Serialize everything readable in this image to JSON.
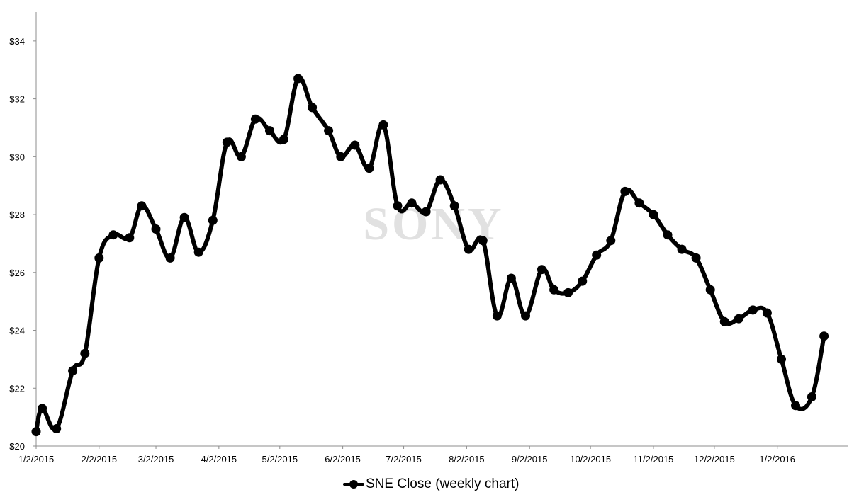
{
  "chart_data": {
    "type": "line",
    "title": "",
    "xlabel": "",
    "ylabel": "",
    "watermark": "SONY",
    "legend": {
      "position": "bottom",
      "entries": [
        "SNE Close (weekly chart)"
      ]
    },
    "grid": false,
    "ylim": [
      20,
      35
    ],
    "y_ticks": [
      {
        "value": 20,
        "label": "$20"
      },
      {
        "value": 22,
        "label": "$22"
      },
      {
        "value": 24,
        "label": "$24"
      },
      {
        "value": 26,
        "label": "$26"
      },
      {
        "value": 28,
        "label": "$28"
      },
      {
        "value": 30,
        "label": "$30"
      },
      {
        "value": 32,
        "label": "$32"
      },
      {
        "value": 34,
        "label": "$34"
      }
    ],
    "x_ticks": [
      "1/2/2015",
      "2/2/2015",
      "3/2/2015",
      "4/2/2015",
      "5/2/2015",
      "6/2/2015",
      "7/2/2015",
      "8/2/2015",
      "9/2/2015",
      "10/2/2015",
      "11/2/2015",
      "12/2/2015",
      "1/2/2016"
    ],
    "series": [
      {
        "name": "SNE Close (weekly chart)",
        "color": "#000000",
        "x": [
          "2015-01-02",
          "2015-01-05",
          "2015-01-12",
          "2015-01-20",
          "2015-01-26",
          "2015-02-02",
          "2015-02-09",
          "2015-02-17",
          "2015-02-23",
          "2015-03-02",
          "2015-03-09",
          "2015-03-16",
          "2015-03-23",
          "2015-03-30",
          "2015-04-06",
          "2015-04-13",
          "2015-04-20",
          "2015-04-27",
          "2015-05-04",
          "2015-05-11",
          "2015-05-18",
          "2015-05-26",
          "2015-06-01",
          "2015-06-08",
          "2015-06-15",
          "2015-06-22",
          "2015-06-29",
          "2015-07-06",
          "2015-07-13",
          "2015-07-20",
          "2015-07-27",
          "2015-08-03",
          "2015-08-10",
          "2015-08-17",
          "2015-08-24",
          "2015-08-31",
          "2015-09-08",
          "2015-09-14",
          "2015-09-21",
          "2015-09-28",
          "2015-10-05",
          "2015-10-12",
          "2015-10-19",
          "2015-10-26",
          "2015-11-02",
          "2015-11-09",
          "2015-11-16",
          "2015-11-23",
          "2015-11-30",
          "2015-12-07",
          "2015-12-14",
          "2015-12-21",
          "2015-12-28",
          "2016-01-04",
          "2016-01-11",
          "2016-01-19",
          "2016-01-25"
        ],
        "values": [
          20.5,
          21.3,
          20.6,
          22.6,
          23.2,
          26.5,
          27.3,
          27.2,
          28.3,
          27.5,
          26.5,
          27.9,
          26.7,
          27.8,
          30.5,
          30.0,
          31.3,
          30.9,
          30.6,
          32.7,
          31.7,
          30.9,
          30.0,
          30.4,
          29.6,
          31.1,
          28.3,
          28.4,
          28.1,
          29.2,
          28.3,
          26.8,
          27.1,
          24.5,
          25.8,
          24.5,
          26.1,
          25.4,
          25.3,
          25.7,
          26.6,
          27.1,
          28.8,
          28.4,
          28.0,
          27.3,
          26.8,
          26.5,
          25.4,
          24.3,
          24.4,
          24.7,
          24.6,
          23.0,
          21.4,
          21.7,
          23.8
        ]
      }
    ]
  }
}
